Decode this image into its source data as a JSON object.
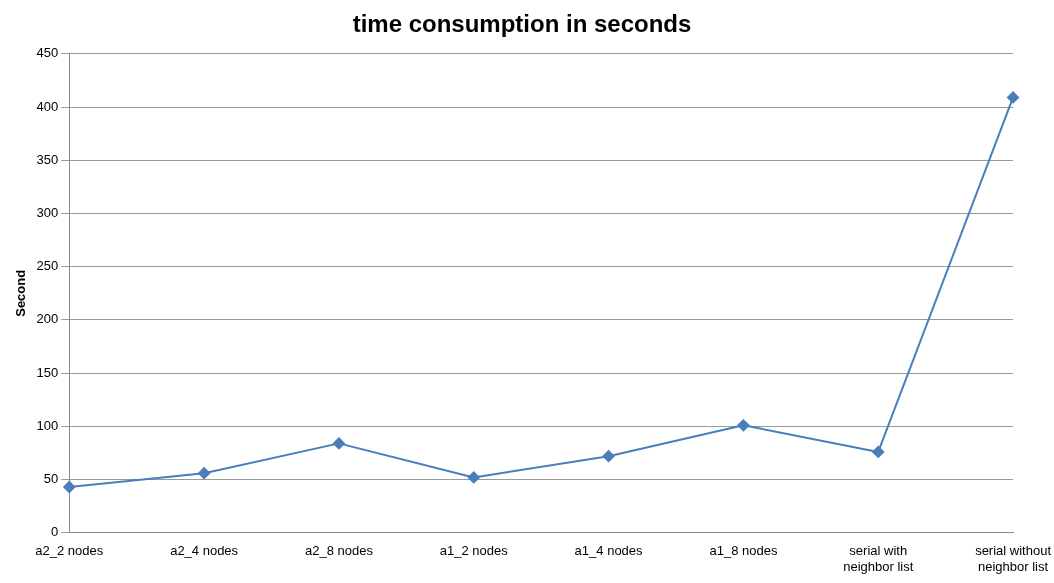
{
  "chart_data": {
    "type": "line",
    "title": "time consumption in seconds",
    "ylabel": "Second",
    "categories": [
      "a2_2 nodes",
      "a2_4 nodes",
      "a2_8 nodes",
      "a1_2 nodes",
      "a1_4 nodes",
      "a1_8 nodes",
      "serial with neighbor list",
      "serial without neighbor list"
    ],
    "series": [
      {
        "color": "#4a7ebb",
        "values": [
          43,
          56,
          84,
          52,
          72,
          101,
          76,
          409
        ]
      }
    ],
    "ylim": [
      0,
      450
    ],
    "yticks": [
      0,
      50,
      100,
      150,
      200,
      250,
      300,
      350,
      400,
      450
    ],
    "grid": "y",
    "marker": "diamond",
    "line_style": "solid",
    "legend": false
  }
}
